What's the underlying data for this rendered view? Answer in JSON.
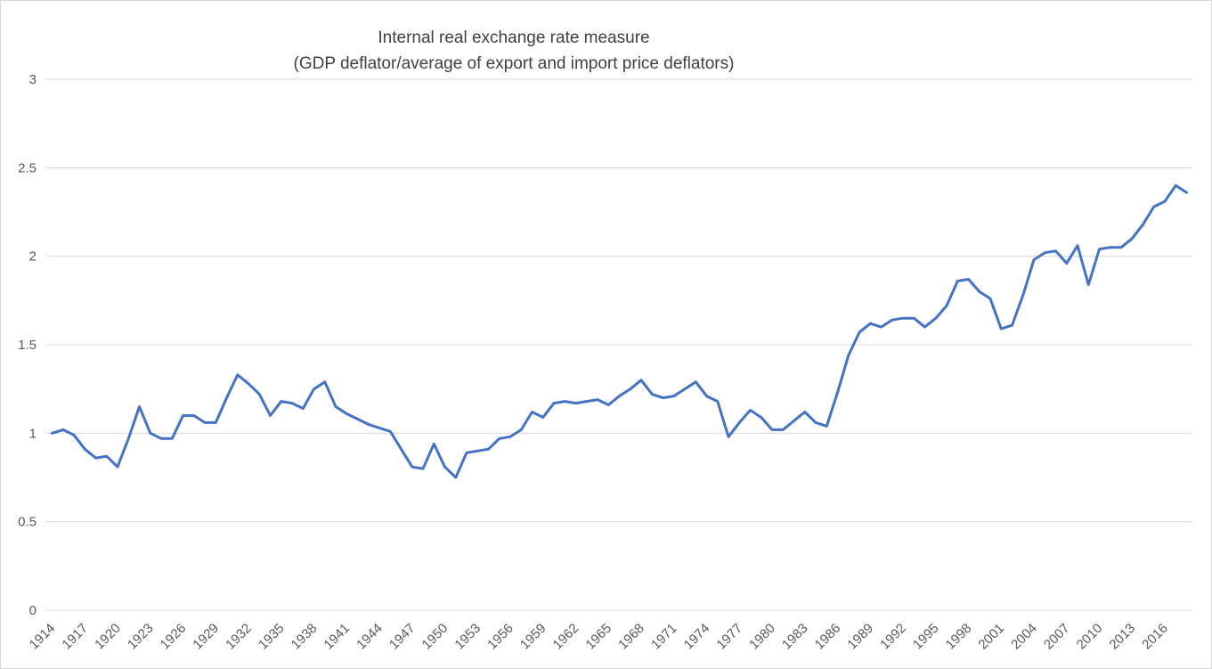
{
  "chart_data": {
    "type": "line",
    "title": "Internal real exchange rate measure",
    "subtitle": "(GDP deflator/average of export and import price deflators)",
    "xlabel": "",
    "ylabel": "",
    "ylim": [
      0,
      3
    ],
    "grid": "horizontal",
    "legend_position": "none",
    "series_name": "Internal real exchange rate measure",
    "series_color": "#4472C4",
    "gridline_color": "#D9D9D9",
    "axis_label_color": "#595959",
    "yticks": [
      0,
      0.5,
      1,
      1.5,
      2,
      2.5,
      3
    ],
    "ytick_labels": [
      "0",
      "0.5",
      "1",
      "1.5",
      "2",
      "2.5",
      "3"
    ],
    "xtick_labels": [
      "1914",
      "1917",
      "1920",
      "1923",
      "1926",
      "1929",
      "1932",
      "1935",
      "1938",
      "1941",
      "1944",
      "1947",
      "1950",
      "1953",
      "1956",
      "1959",
      "1962",
      "1965",
      "1968",
      "1971",
      "1974",
      "1977",
      "1980",
      "1983",
      "1986",
      "1989",
      "1992",
      "1995",
      "1998",
      "2001",
      "2004",
      "2007",
      "2010",
      "2013",
      "2016"
    ],
    "x": [
      1914,
      1915,
      1916,
      1917,
      1918,
      1919,
      1920,
      1921,
      1922,
      1923,
      1924,
      1925,
      1926,
      1927,
      1928,
      1929,
      1930,
      1931,
      1932,
      1933,
      1934,
      1935,
      1936,
      1937,
      1938,
      1939,
      1940,
      1941,
      1942,
      1943,
      1944,
      1945,
      1946,
      1947,
      1948,
      1949,
      1950,
      1951,
      1952,
      1953,
      1954,
      1955,
      1956,
      1957,
      1958,
      1959,
      1960,
      1961,
      1962,
      1963,
      1964,
      1965,
      1966,
      1967,
      1968,
      1969,
      1970,
      1971,
      1972,
      1973,
      1974,
      1975,
      1976,
      1977,
      1978,
      1979,
      1980,
      1981,
      1982,
      1983,
      1984,
      1985,
      1986,
      1987,
      1988,
      1989,
      1990,
      1991,
      1992,
      1993,
      1994,
      1995,
      1996,
      1997,
      1998,
      1999,
      2000,
      2001,
      2002,
      2003,
      2004,
      2005,
      2006,
      2007,
      2008,
      2009,
      2010,
      2011,
      2012,
      2013,
      2014,
      2015,
      2016,
      2017,
      2018
    ],
    "values": [
      1.0,
      1.02,
      0.99,
      0.91,
      0.86,
      0.87,
      0.81,
      0.97,
      1.15,
      1.0,
      0.97,
      0.97,
      1.1,
      1.1,
      1.06,
      1.06,
      1.2,
      1.33,
      1.28,
      1.22,
      1.1,
      1.18,
      1.17,
      1.14,
      1.25,
      1.29,
      1.15,
      1.11,
      1.08,
      1.05,
      1.03,
      1.01,
      0.91,
      0.81,
      0.8,
      0.94,
      0.81,
      0.75,
      0.89,
      0.9,
      0.91,
      0.97,
      0.98,
      1.02,
      1.12,
      1.09,
      1.17,
      1.18,
      1.17,
      1.18,
      1.19,
      1.16,
      1.21,
      1.25,
      1.3,
      1.22,
      1.2,
      1.21,
      1.25,
      1.29,
      1.21,
      1.18,
      0.98,
      1.06,
      1.13,
      1.09,
      1.02,
      1.02,
      1.07,
      1.12,
      1.06,
      1.04,
      1.23,
      1.44,
      1.57,
      1.62,
      1.6,
      1.64,
      1.65,
      1.65,
      1.6,
      1.65,
      1.72,
      1.86,
      1.87,
      1.8,
      1.76,
      1.59,
      1.61,
      1.78,
      1.98,
      2.02,
      2.03,
      1.96,
      2.06,
      1.84,
      2.04,
      2.05,
      2.05,
      2.1,
      2.18,
      2.28,
      2.31,
      2.4,
      2.36
    ]
  }
}
